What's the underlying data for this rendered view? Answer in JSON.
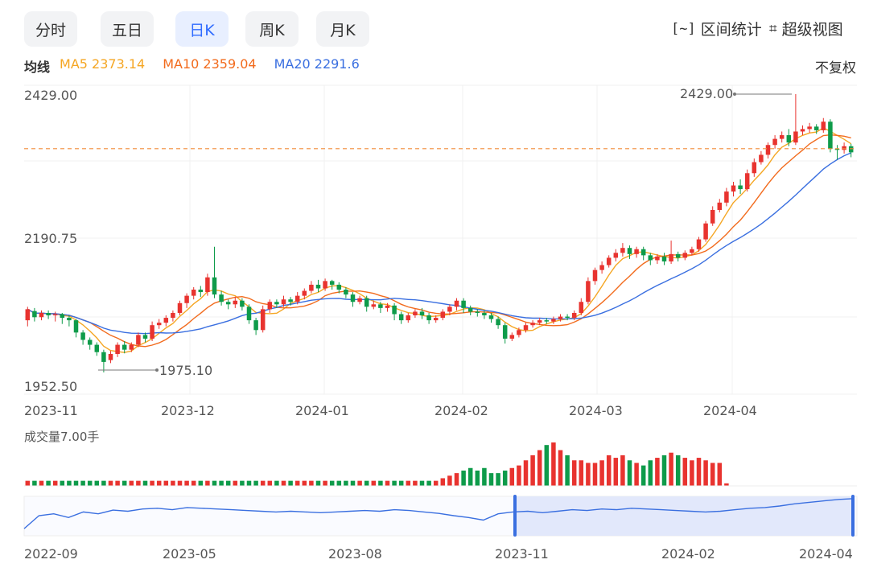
{
  "tabs": [
    {
      "label": "分时",
      "active": false
    },
    {
      "label": "五日",
      "active": false
    },
    {
      "label": "日K",
      "active": true
    },
    {
      "label": "周K",
      "active": false
    },
    {
      "label": "月K",
      "active": false
    }
  ],
  "tools": {
    "range_stats": {
      "icon": "[~]",
      "label": "区间统计"
    },
    "super_view": {
      "icon": "⌗",
      "label": "超级视图"
    }
  },
  "ma_legend": {
    "title": "均线",
    "ma5": "MA5 2373.14",
    "ma10": "MA10 2359.04",
    "ma20": "MA20 2291.6",
    "colors": {
      "ma5": "#f5a623",
      "ma10": "#f26b1d",
      "ma20": "#3a6fe0"
    }
  },
  "adjust_label": "不复权",
  "price_axis": {
    "top": "2429.00",
    "mid": "2190.75",
    "bottom": "1952.50"
  },
  "annotations": {
    "high": "2429.00",
    "low": "1975.10"
  },
  "date_axis": [
    "2023-11",
    "2023-12",
    "2024-01",
    "2024-02",
    "2024-03",
    "2024-04"
  ],
  "volume_label": "成交量7.00手",
  "nav_axis": [
    "2022-09",
    "2023-05",
    "2023-08",
    "2023-11",
    "2024-02",
    "2024-04"
  ],
  "colors": {
    "up": "#e8332f",
    "down": "#0e9b4a",
    "dash": "#f28c38",
    "nav": "#3a6fe0"
  },
  "chart_data": {
    "type": "candlestick",
    "ylim": [
      1952.5,
      2429.0
    ],
    "last_price_line": 2340,
    "candles": [
      [
        2060,
        2078,
        2050,
        2082
      ],
      [
        2075,
        2065,
        2058,
        2080
      ],
      [
        2065,
        2072,
        2060,
        2076
      ],
      [
        2072,
        2068,
        2062,
        2076
      ],
      [
        2068,
        2070,
        2058,
        2074
      ],
      [
        2070,
        2064,
        2054,
        2072
      ],
      [
        2064,
        2060,
        2050,
        2068
      ],
      [
        2060,
        2040,
        2032,
        2062
      ],
      [
        2040,
        2028,
        2020,
        2044
      ],
      [
        2028,
        2020,
        2012,
        2032
      ],
      [
        2020,
        2008,
        2002,
        2024
      ],
      [
        2008,
        1992,
        1975,
        2012
      ],
      [
        1995,
        2005,
        1990,
        2010
      ],
      [
        2005,
        2020,
        2000,
        2024
      ],
      [
        2020,
        2012,
        2006,
        2026
      ],
      [
        2012,
        2020,
        2008,
        2024
      ],
      [
        2020,
        2036,
        2016,
        2040
      ],
      [
        2036,
        2030,
        2024,
        2040
      ],
      [
        2030,
        2052,
        2026,
        2058
      ],
      [
        2052,
        2056,
        2046,
        2062
      ],
      [
        2056,
        2064,
        2050,
        2068
      ],
      [
        2064,
        2072,
        2058,
        2076
      ],
      [
        2072,
        2088,
        2068,
        2092
      ],
      [
        2088,
        2100,
        2080,
        2104
      ],
      [
        2100,
        2110,
        2094,
        2114
      ],
      [
        2110,
        2106,
        2098,
        2116
      ],
      [
        2106,
        2130,
        2100,
        2136
      ],
      [
        2130,
        2102,
        2096,
        2180
      ],
      [
        2102,
        2090,
        2084,
        2108
      ],
      [
        2090,
        2086,
        2078,
        2094
      ],
      [
        2086,
        2092,
        2080,
        2098
      ],
      [
        2092,
        2082,
        2076,
        2096
      ],
      [
        2082,
        2060,
        2054,
        2086
      ],
      [
        2060,
        2044,
        2036,
        2064
      ],
      [
        2044,
        2078,
        2040,
        2084
      ],
      [
        2078,
        2090,
        2072,
        2094
      ],
      [
        2090,
        2086,
        2080,
        2094
      ],
      [
        2086,
        2094,
        2082,
        2100
      ],
      [
        2094,
        2090,
        2084,
        2098
      ],
      [
        2090,
        2100,
        2086,
        2106
      ],
      [
        2100,
        2108,
        2094,
        2112
      ],
      [
        2108,
        2118,
        2104,
        2124
      ],
      [
        2118,
        2112,
        2106,
        2126
      ],
      [
        2112,
        2124,
        2108,
        2128
      ],
      [
        2124,
        2118,
        2110,
        2126
      ],
      [
        2118,
        2110,
        2104,
        2122
      ],
      [
        2110,
        2102,
        2096,
        2114
      ],
      [
        2102,
        2090,
        2082,
        2106
      ],
      [
        2090,
        2096,
        2086,
        2100
      ],
      [
        2096,
        2082,
        2074,
        2100
      ],
      [
        2082,
        2086,
        2078,
        2092
      ],
      [
        2086,
        2080,
        2072,
        2090
      ],
      [
        2080,
        2084,
        2074,
        2088
      ],
      [
        2084,
        2070,
        2060,
        2088
      ],
      [
        2070,
        2060,
        2054,
        2074
      ],
      [
        2060,
        2068,
        2056,
        2072
      ],
      [
        2068,
        2074,
        2064,
        2078
      ],
      [
        2074,
        2068,
        2062,
        2080
      ],
      [
        2068,
        2060,
        2054,
        2072
      ],
      [
        2060,
        2064,
        2056,
        2068
      ],
      [
        2064,
        2074,
        2060,
        2078
      ],
      [
        2074,
        2082,
        2068,
        2086
      ],
      [
        2082,
        2092,
        2076,
        2096
      ],
      [
        2092,
        2080,
        2072,
        2096
      ],
      [
        2080,
        2074,
        2068,
        2084
      ],
      [
        2074,
        2072,
        2066,
        2078
      ],
      [
        2072,
        2068,
        2062,
        2076
      ],
      [
        2068,
        2062,
        2056,
        2072
      ],
      [
        2062,
        2052,
        2046,
        2066
      ],
      [
        2052,
        2030,
        2022,
        2056
      ],
      [
        2030,
        2036,
        2026,
        2040
      ],
      [
        2036,
        2044,
        2032,
        2048
      ],
      [
        2044,
        2052,
        2040,
        2056
      ],
      [
        2052,
        2056,
        2048,
        2060
      ],
      [
        2056,
        2060,
        2052,
        2064
      ],
      [
        2060,
        2058,
        2054,
        2064
      ],
      [
        2058,
        2062,
        2054,
        2066
      ],
      [
        2062,
        2066,
        2058,
        2070
      ],
      [
        2066,
        2064,
        2060,
        2070
      ],
      [
        2064,
        2072,
        2060,
        2076
      ],
      [
        2072,
        2090,
        2068,
        2096
      ],
      [
        2090,
        2124,
        2086,
        2130
      ],
      [
        2124,
        2142,
        2118,
        2146
      ],
      [
        2142,
        2150,
        2136,
        2156
      ],
      [
        2150,
        2162,
        2146,
        2166
      ],
      [
        2162,
        2170,
        2156,
        2176
      ],
      [
        2170,
        2178,
        2164,
        2186
      ],
      [
        2178,
        2168,
        2160,
        2182
      ],
      [
        2168,
        2176,
        2162,
        2180
      ],
      [
        2176,
        2166,
        2158,
        2180
      ],
      [
        2166,
        2158,
        2150,
        2170
      ],
      [
        2158,
        2164,
        2152,
        2168
      ],
      [
        2164,
        2156,
        2150,
        2170
      ],
      [
        2156,
        2168,
        2152,
        2190
      ],
      [
        2168,
        2162,
        2156,
        2172
      ],
      [
        2162,
        2170,
        2158,
        2174
      ],
      [
        2170,
        2176,
        2166,
        2180
      ],
      [
        2176,
        2192,
        2172,
        2196
      ],
      [
        2192,
        2218,
        2188,
        2222
      ],
      [
        2218,
        2240,
        2214,
        2246
      ],
      [
        2240,
        2252,
        2236,
        2258
      ],
      [
        2252,
        2270,
        2246,
        2276
      ],
      [
        2270,
        2280,
        2262,
        2286
      ],
      [
        2280,
        2274,
        2266,
        2290
      ],
      [
        2274,
        2300,
        2270,
        2306
      ],
      [
        2300,
        2318,
        2294,
        2324
      ],
      [
        2318,
        2330,
        2314,
        2336
      ],
      [
        2330,
        2346,
        2324,
        2350
      ],
      [
        2346,
        2356,
        2340,
        2362
      ],
      [
        2356,
        2362,
        2350,
        2368
      ],
      [
        2362,
        2350,
        2344,
        2372
      ],
      [
        2350,
        2368,
        2346,
        2429
      ],
      [
        2368,
        2372,
        2362,
        2378
      ],
      [
        2372,
        2376,
        2366,
        2382
      ],
      [
        2376,
        2370,
        2364,
        2380
      ],
      [
        2370,
        2384,
        2366,
        2390
      ],
      [
        2384,
        2340,
        2334,
        2388
      ],
      [
        2340,
        2338,
        2322,
        2346
      ],
      [
        2338,
        2344,
        2332,
        2350
      ],
      [
        2344,
        2334,
        2326,
        2348
      ]
    ],
    "volume": [
      2,
      2,
      2,
      2,
      2,
      2,
      2,
      2,
      2,
      2,
      2,
      2,
      2,
      2,
      2,
      2,
      2,
      2,
      2,
      2,
      2,
      2,
      2,
      2,
      2,
      2,
      2,
      2,
      2,
      2,
      2,
      2,
      2,
      2,
      2,
      2,
      2,
      2,
      2,
      2,
      2,
      2,
      2,
      2,
      2,
      2,
      2,
      2,
      2,
      2,
      2,
      2,
      2,
      2,
      2,
      2,
      2,
      2,
      2,
      2,
      3,
      4,
      5,
      6,
      7,
      6,
      7,
      5,
      5,
      6,
      7,
      8,
      10,
      12,
      14,
      16,
      17,
      14,
      12,
      10,
      10,
      9,
      9,
      10,
      12,
      11,
      12,
      10,
      9,
      8,
      10,
      11,
      12,
      13,
      12,
      11,
      10,
      11,
      10,
      9,
      9,
      1,
      0,
      0,
      0,
      0,
      0,
      0,
      0,
      0,
      0,
      0,
      0,
      0,
      0,
      0,
      0,
      0,
      0,
      0,
      0,
      0,
      0,
      0,
      0,
      0,
      0,
      0,
      0,
      0,
      0,
      0
    ],
    "navigator": [
      0.15,
      0.5,
      0.55,
      0.45,
      0.6,
      0.55,
      0.65,
      0.62,
      0.68,
      0.7,
      0.66,
      0.72,
      0.7,
      0.68,
      0.66,
      0.64,
      0.62,
      0.6,
      0.62,
      0.6,
      0.58,
      0.6,
      0.62,
      0.64,
      0.62,
      0.66,
      0.64,
      0.6,
      0.56,
      0.5,
      0.45,
      0.38,
      0.55,
      0.6,
      0.62,
      0.58,
      0.62,
      0.66,
      0.64,
      0.68,
      0.66,
      0.7,
      0.68,
      0.66,
      0.64,
      0.62,
      0.6,
      0.62,
      0.66,
      0.7,
      0.72,
      0.76,
      0.82,
      0.86,
      0.9,
      0.94,
      0.96
    ]
  }
}
